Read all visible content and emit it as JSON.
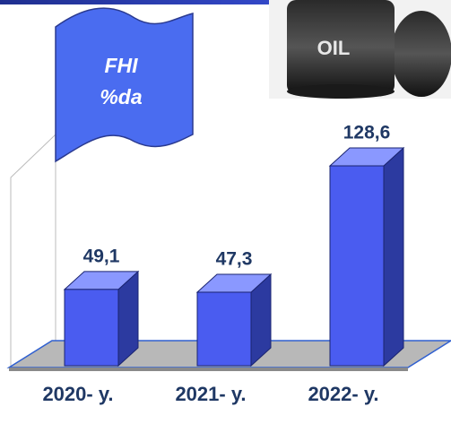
{
  "chart_data": {
    "type": "bar3d",
    "title_lines": [
      "FHI",
      "%da"
    ],
    "image_text": "OIL",
    "categories": [
      "2020- y.",
      "2021- y.",
      "2022- y."
    ],
    "values": [
      49.1,
      47.3,
      128.6
    ],
    "value_labels": [
      "49,1",
      "47,3",
      "128,6"
    ],
    "color": "#4a5cf0"
  }
}
